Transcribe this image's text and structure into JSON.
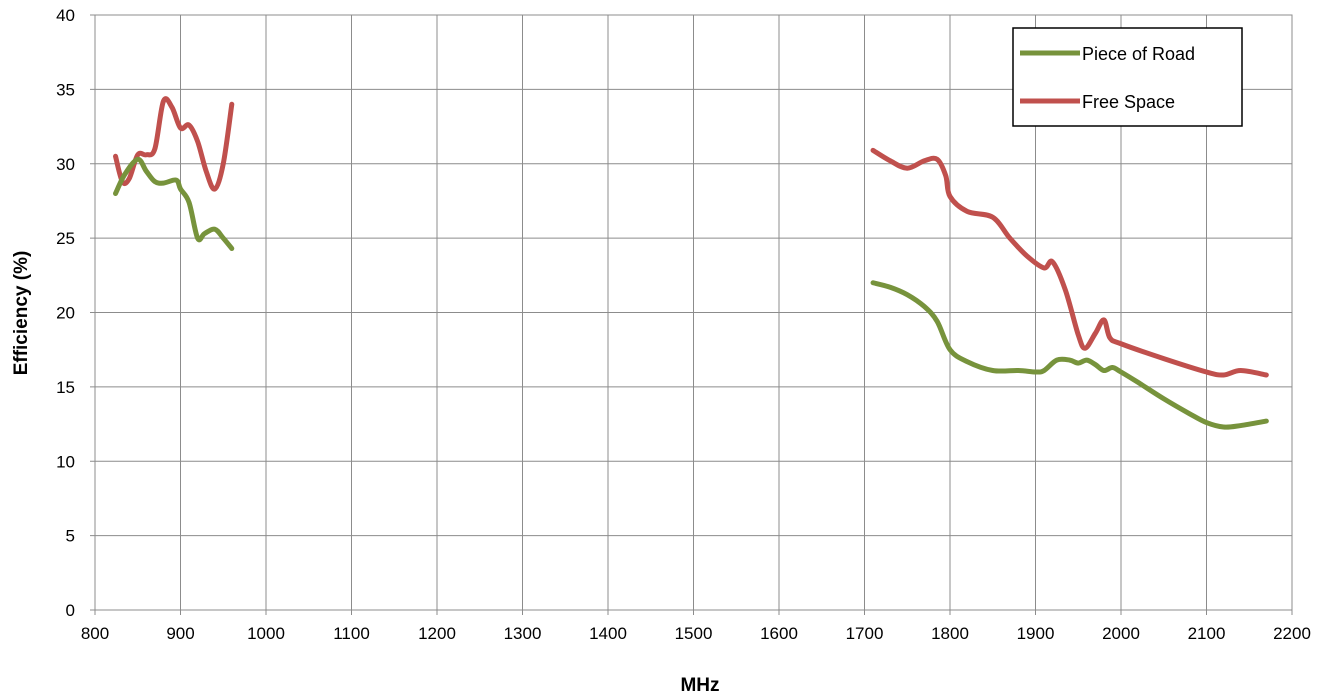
{
  "chart_data": {
    "type": "line",
    "title": "",
    "xlabel": "MHz",
    "ylabel": "Efficiency (%)",
    "xlim": [
      800,
      2200
    ],
    "ylim": [
      0,
      40
    ],
    "x_ticks": [
      800,
      900,
      1000,
      1100,
      1200,
      1300,
      1400,
      1500,
      1600,
      1700,
      1800,
      1900,
      2000,
      2100,
      2200
    ],
    "y_ticks": [
      0,
      5,
      10,
      15,
      20,
      25,
      30,
      35,
      40
    ],
    "grid": true,
    "legend_position": "top-right",
    "series": [
      {
        "name": "Piece of Road",
        "color": "#77933c",
        "segments": [
          [
            [
              824,
              28.0
            ],
            [
              835,
              29.3
            ],
            [
              850,
              30.3
            ],
            [
              860,
              29.5
            ],
            [
              870,
              28.8
            ],
            [
              880,
              28.7
            ],
            [
              895,
              28.9
            ],
            [
              900,
              28.3
            ],
            [
              910,
              27.4
            ],
            [
              920,
              25.0
            ],
            [
              928,
              25.3
            ],
            [
              940,
              25.6
            ],
            [
              950,
              25.0
            ],
            [
              960,
              24.3
            ]
          ],
          [
            [
              1710,
              22.0
            ],
            [
              1730,
              21.7
            ],
            [
              1750,
              21.2
            ],
            [
              1770,
              20.4
            ],
            [
              1785,
              19.4
            ],
            [
              1800,
              17.5
            ],
            [
              1820,
              16.7
            ],
            [
              1850,
              16.1
            ],
            [
              1880,
              16.1
            ],
            [
              1900,
              16.0
            ],
            [
              1910,
              16.1
            ],
            [
              1925,
              16.8
            ],
            [
              1940,
              16.8
            ],
            [
              1950,
              16.6
            ],
            [
              1960,
              16.8
            ],
            [
              1970,
              16.5
            ],
            [
              1980,
              16.1
            ],
            [
              1990,
              16.3
            ],
            [
              2000,
              16.0
            ],
            [
              2020,
              15.3
            ],
            [
              2050,
              14.2
            ],
            [
              2080,
              13.2
            ],
            [
              2100,
              12.6
            ],
            [
              2120,
              12.3
            ],
            [
              2140,
              12.4
            ],
            [
              2170,
              12.7
            ]
          ]
        ]
      },
      {
        "name": "Free Space",
        "color": "#c0504d",
        "segments": [
          [
            [
              824,
              30.5
            ],
            [
              832,
              28.8
            ],
            [
              840,
              29.0
            ],
            [
              850,
              30.6
            ],
            [
              860,
              30.6
            ],
            [
              870,
              31.0
            ],
            [
              880,
              34.2
            ],
            [
              890,
              33.8
            ],
            [
              900,
              32.4
            ],
            [
              910,
              32.6
            ],
            [
              920,
              31.5
            ],
            [
              930,
              29.5
            ],
            [
              940,
              28.3
            ],
            [
              950,
              30.0
            ],
            [
              960,
              34.0
            ]
          ],
          [
            [
              1710,
              30.9
            ],
            [
              1730,
              30.2
            ],
            [
              1750,
              29.7
            ],
            [
              1770,
              30.2
            ],
            [
              1785,
              30.3
            ],
            [
              1795,
              29.2
            ],
            [
              1800,
              27.8
            ],
            [
              1820,
              26.8
            ],
            [
              1850,
              26.4
            ],
            [
              1870,
              25.0
            ],
            [
              1890,
              23.8
            ],
            [
              1910,
              23.0
            ],
            [
              1920,
              23.4
            ],
            [
              1935,
              21.5
            ],
            [
              1950,
              18.5
            ],
            [
              1958,
              17.6
            ],
            [
              1970,
              18.6
            ],
            [
              1980,
              19.5
            ],
            [
              1987,
              18.3
            ],
            [
              2000,
              17.9
            ],
            [
              2050,
              16.9
            ],
            [
              2100,
              16.0
            ],
            [
              2120,
              15.8
            ],
            [
              2140,
              16.1
            ],
            [
              2170,
              15.8
            ]
          ]
        ]
      }
    ]
  }
}
